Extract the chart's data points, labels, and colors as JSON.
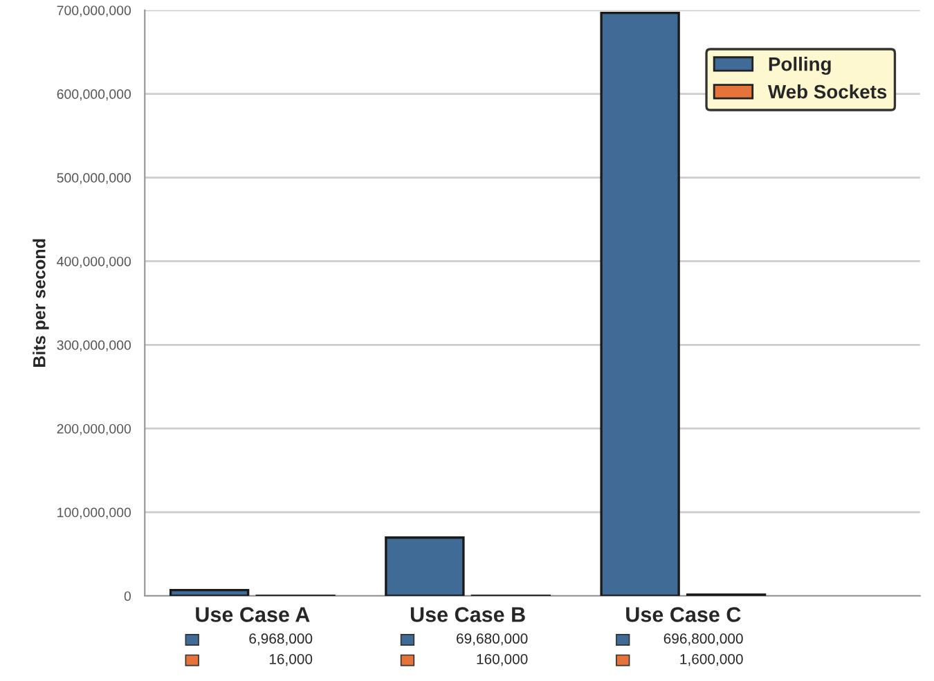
{
  "chart_data": {
    "type": "bar",
    "ylabel": "Bits per second",
    "categories": [
      "Use Case A",
      "Use Case B",
      "Use Case C"
    ],
    "series": [
      {
        "name": "Polling",
        "color": "#3f6b96",
        "values": [
          6968000,
          69680000,
          696800000
        ],
        "value_labels": [
          "6,968,000",
          "69,680,000",
          "696,800,000"
        ]
      },
      {
        "name": "Web Sockets",
        "color": "#e5733a",
        "values": [
          16000,
          160000,
          1600000
        ],
        "value_labels": [
          "16,000",
          "160,000",
          "1,600,000"
        ]
      }
    ],
    "ylim": [
      0,
      700000000
    ],
    "yticks": [
      {
        "value": 0,
        "label": "0"
      },
      {
        "value": 100000000,
        "label": "100,000,000"
      },
      {
        "value": 200000000,
        "label": "200,000,000"
      },
      {
        "value": 300000000,
        "label": "300,000,000"
      },
      {
        "value": 400000000,
        "label": "400,000,000"
      },
      {
        "value": 500000000,
        "label": "500,000,000"
      },
      {
        "value": 600000000,
        "label": "600,000,000"
      },
      {
        "value": 700000000,
        "label": "700,000,000"
      }
    ],
    "grid": "y",
    "legend": "top right"
  }
}
